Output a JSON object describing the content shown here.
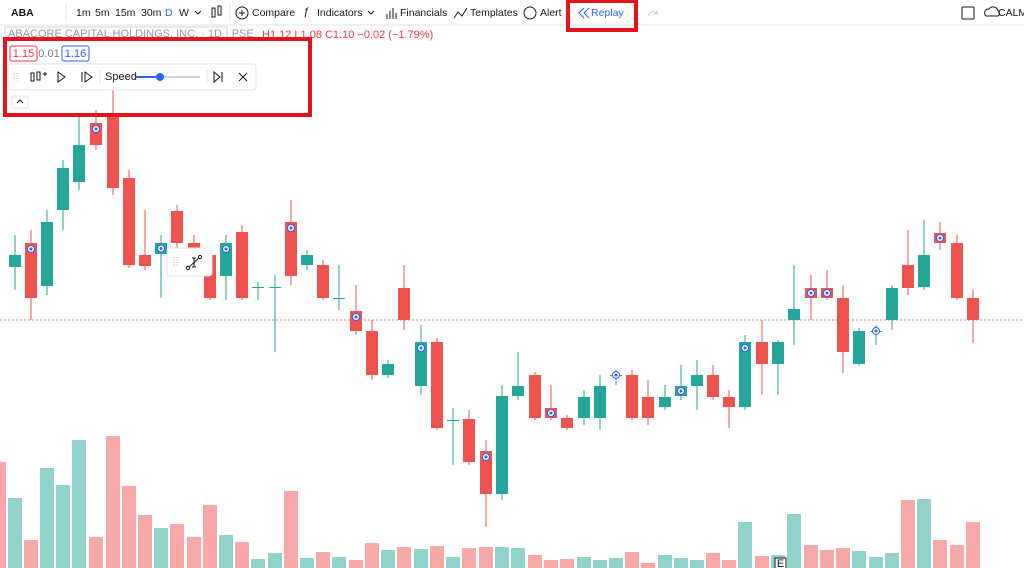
{
  "toolbar": {
    "symbol": "ABA",
    "intervals": [
      "1m",
      "5m",
      "15m",
      "30m",
      "D",
      "W"
    ],
    "compare": "Compare",
    "indicators": "Indicators",
    "financials": "Financials",
    "templates": "Templates",
    "alert": "Alert",
    "replay": "Replay",
    "right_label": "CALM"
  },
  "legend": {
    "name": "ABACORE CAPITAL HOLDINGS, INC. · 1D · PSE",
    "ohlc": "H1.12 L1.08 C1.10 −0.02 (−1.79%)"
  },
  "replay_panel": {
    "sell_price": "1.15",
    "spread": "0.01",
    "buy_price": "1.16",
    "speed": "Speed"
  },
  "event_marker": "E"
}
